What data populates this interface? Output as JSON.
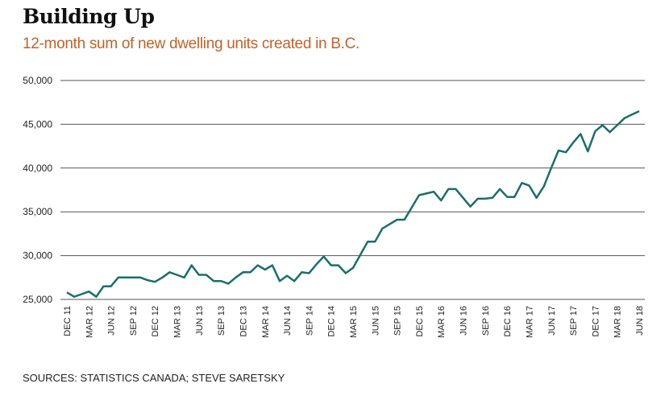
{
  "header": {
    "title": "Building Up",
    "subtitle": "12-month sum of new dwelling units created in B.C."
  },
  "footer": {
    "source": "SOURCES: STATISTICS CANADA; STEVE SARETSKY"
  },
  "colors": {
    "line": "#1a6f66",
    "subtitle": "#c0622a",
    "grid": "#555555"
  },
  "chart_data": {
    "type": "line",
    "title": "Building Up",
    "subtitle": "12-month sum of new dwelling units created in B.C.",
    "xlabel": "",
    "ylabel": "",
    "ylim": [
      25000,
      50000
    ],
    "yticks": [
      25000,
      30000,
      35000,
      40000,
      45000,
      50000
    ],
    "ytick_labels": [
      "25,000",
      "30,000",
      "35,000",
      "40,000",
      "45,000",
      "50,000"
    ],
    "grid": true,
    "legend": "none",
    "xtick_labels": [
      "DEC 11",
      "MAR 12",
      "JUN 12",
      "SEP 12",
      "DEC 12",
      "MAR 13",
      "JUN 13",
      "SEP 13",
      "DEC 13",
      "MAR 14",
      "JUN 14",
      "SEP 14",
      "DEC 14",
      "MAR 15",
      "JUN 15",
      "SEP 15",
      "DEC 15",
      "MAR 16",
      "JUN 16",
      "SEP 16",
      "DEC 16",
      "MAR 17",
      "JUN 17",
      "SEP 17",
      "DEC 17",
      "MAR 18",
      "JUN 18"
    ],
    "x_start": "DEC 11",
    "x_step": "month",
    "series": [
      {
        "name": "New dwelling units (12-month sum)",
        "values": [
          25800,
          25300,
          25600,
          25900,
          25300,
          26500,
          26500,
          27500,
          27500,
          27500,
          27500,
          27200,
          27000,
          27500,
          28100,
          27800,
          27500,
          28900,
          27800,
          27800,
          27100,
          27100,
          26800,
          27500,
          28100,
          28100,
          28900,
          28400,
          28900,
          27100,
          27700,
          27100,
          28100,
          28000,
          29000,
          29900,
          28900,
          28900,
          28000,
          28600,
          30100,
          31600,
          31600,
          33100,
          33600,
          34100,
          34100,
          35500,
          36900,
          37100,
          37300,
          36300,
          37600,
          37600,
          36600,
          35600,
          36500,
          36500,
          36600,
          37600,
          36700,
          36700,
          38300,
          38000,
          36600,
          37900,
          40000,
          42000,
          41800,
          42900,
          43900,
          41900,
          44200,
          44900,
          44100,
          44900,
          45700,
          46100,
          46500
        ]
      }
    ]
  }
}
